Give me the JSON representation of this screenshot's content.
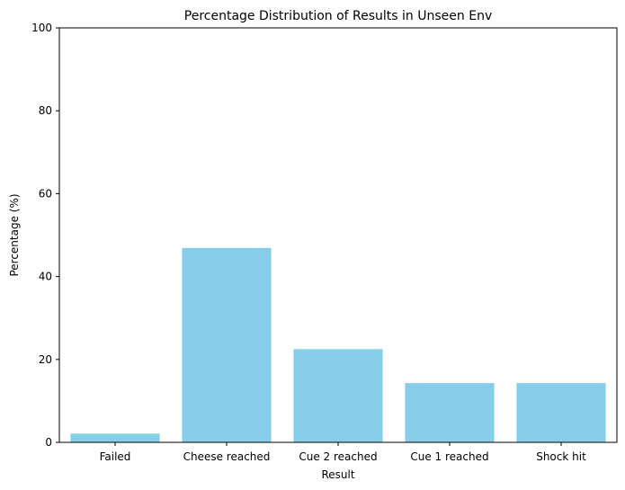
{
  "chart_data": {
    "type": "bar",
    "title": "Percentage Distribution of Results in Unseen Env",
    "xlabel": "Result",
    "ylabel": "Percentage (%)",
    "categories": [
      "Failed",
      "Cheese reached",
      "Cue 2 reached",
      "Cue 1 reached",
      "Shock hit"
    ],
    "values": [
      2.1,
      46.9,
      22.5,
      14.3,
      14.3
    ],
    "ylim": [
      0,
      100
    ],
    "yticks": [
      0,
      20,
      40,
      60,
      80,
      100
    ],
    "bar_color": "#87ceeb",
    "grid": false,
    "legend": false
  }
}
